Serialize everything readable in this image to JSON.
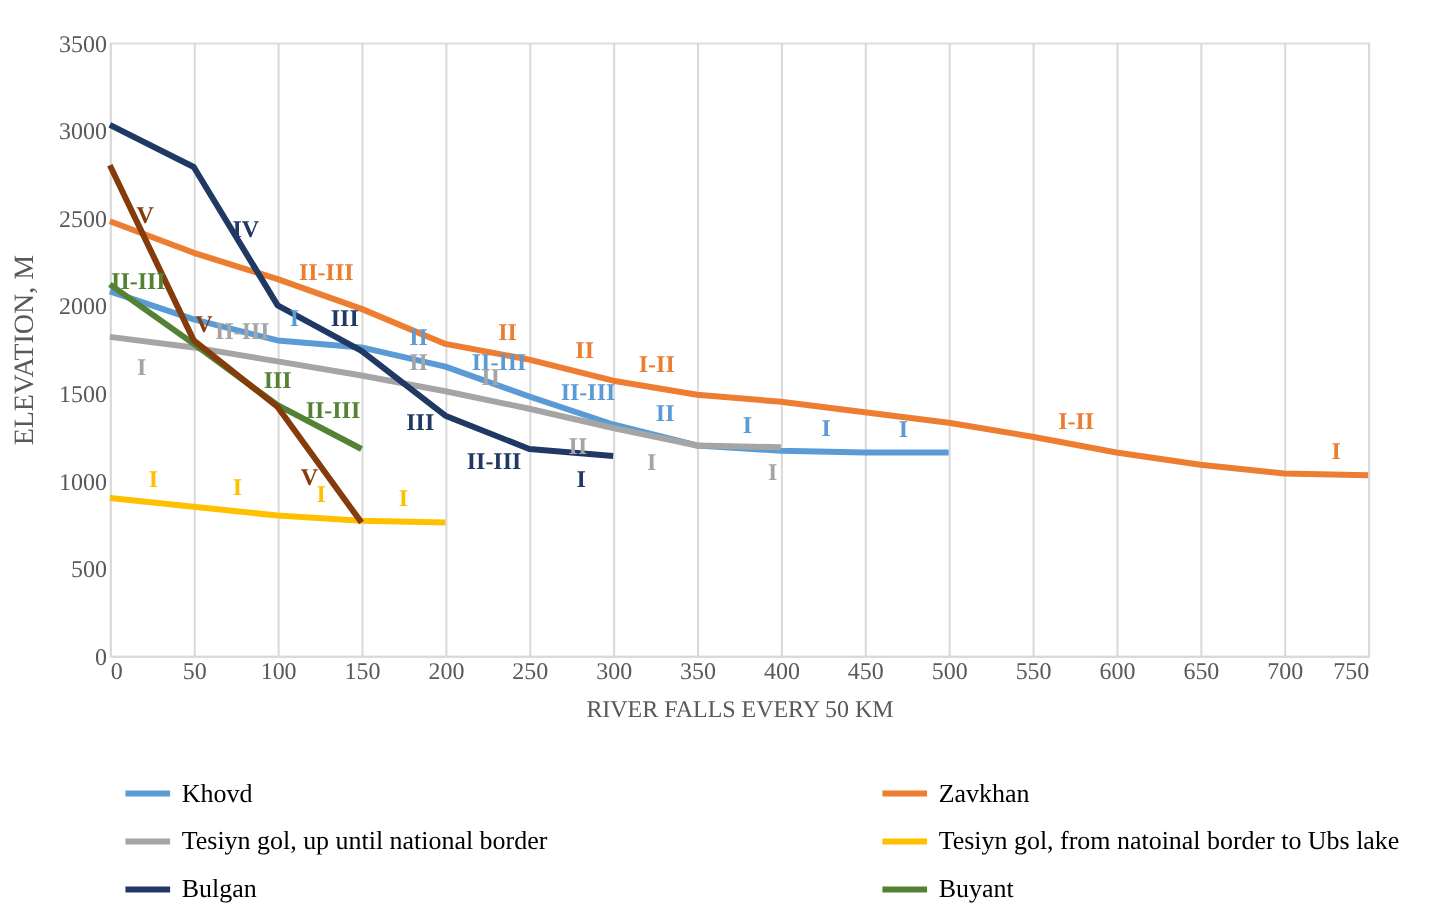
{
  "chart_data": {
    "type": "line",
    "xlabel": "RIVER FALLS EVERY 50 KM",
    "ylabel": "ELEVATION, M",
    "xlim": [
      0,
      750
    ],
    "xticks": [
      0,
      50,
      100,
      150,
      200,
      250,
      300,
      350,
      400,
      450,
      500,
      550,
      600,
      650,
      700,
      750
    ],
    "ylim": [
      0,
      3500
    ],
    "yticks": [
      0,
      500,
      1000,
      1500,
      2000,
      2500,
      3000,
      3500
    ],
    "grid": "x",
    "legend": "bottom",
    "marker": "none",
    "line_style": "solid",
    "series": [
      {
        "name": "Khovd",
        "color": "#5b9bd5",
        "x": [
          0,
          50,
          100,
          150,
          200,
          250,
          300,
          350,
          400,
          450,
          500
        ],
        "values": [
          2080,
          1920,
          1800,
          1760,
          1650,
          1480,
          1320,
          1200,
          1170,
          1160,
          1160
        ]
      },
      {
        "name": "Zavkhan",
        "color": "#ed7d31",
        "x": [
          0,
          50,
          100,
          150,
          200,
          250,
          300,
          350,
          400,
          450,
          500,
          550,
          600,
          650,
          700,
          750
        ],
        "values": [
          2480,
          2300,
          2150,
          1980,
          1780,
          1690,
          1570,
          1490,
          1450,
          1390,
          1330,
          1250,
          1160,
          1090,
          1040,
          1030
        ]
      },
      {
        "name": "Tesiyn gol, up until national border",
        "color": "#a5a5a5",
        "x": [
          0,
          50,
          100,
          150,
          200,
          250,
          300,
          350,
          400
        ],
        "values": [
          1820,
          1760,
          1680,
          1600,
          1510,
          1410,
          1300,
          1200,
          1190
        ]
      },
      {
        "name": "Tesiyn gol, from natoinal border to Ubs lake",
        "color": "#ffc000",
        "x": [
          0,
          50,
          100,
          150,
          200
        ],
        "values": [
          900,
          850,
          800,
          770,
          760
        ]
      },
      {
        "name": "Bulgan",
        "color": "#203864",
        "x": [
          0,
          50,
          100,
          150,
          200,
          250,
          300
        ],
        "values": [
          3030,
          2790,
          2000,
          1740,
          1370,
          1180,
          1140
        ]
      },
      {
        "name": "Buyant",
        "color": "#548235",
        "x": [
          0,
          50,
          100,
          150
        ],
        "values": [
          2120,
          1780,
          1430,
          1180
        ]
      },
      {
        "color": "#843c0c",
        "x": [
          0,
          50,
          100,
          150
        ],
        "values": [
          2800,
          1800,
          1420,
          760
        ]
      }
    ],
    "annotations": [
      {
        "text": "V",
        "x": 21,
        "y": 2380
      },
      {
        "text": "IV",
        "x": 81,
        "y": 2300
      },
      {
        "text": "II-III",
        "x": 129,
        "y": 2051
      },
      {
        "text": "III",
        "x": 140,
        "y": 1792
      },
      {
        "text": "I",
        "x": 110,
        "y": 1792
      },
      {
        "text": "II",
        "x": 184,
        "y": 1685
      },
      {
        "text": "II-III",
        "x": 17,
        "y": 2004
      },
      {
        "text": "I",
        "x": 19,
        "y": 1787
      },
      {
        "text": "II-III",
        "x": 79,
        "y": 1714
      },
      {
        "text": "III",
        "x": 100,
        "y": 1436
      },
      {
        "text": "V",
        "x": 56,
        "y": 1756
      },
      {
        "text": "II",
        "x": 184,
        "y": 1539
      },
      {
        "text": "III",
        "x": 185,
        "y": 1471
      },
      {
        "text": "II-III",
        "x": 133,
        "y": 1265
      },
      {
        "text": "V",
        "x": 119,
        "y": 1159
      },
      {
        "text": "I",
        "x": 26,
        "y": 874
      },
      {
        "text": "I",
        "x": 76,
        "y": 824
      },
      {
        "text": "I",
        "x": 126,
        "y": 784
      },
      {
        "text": "I",
        "x": 175,
        "y": 765
      },
      {
        "text": "II",
        "x": 237,
        "y": 1713
      },
      {
        "text": "II",
        "x": 283,
        "y": 1611
      },
      {
        "text": "I-II",
        "x": 326,
        "y": 1528
      },
      {
        "text": "II-III",
        "x": 232,
        "y": 1541
      },
      {
        "text": "II-III",
        "x": 285,
        "y": 1368
      },
      {
        "text": "II",
        "x": 227,
        "y": 1456
      },
      {
        "text": "II",
        "x": 279,
        "y": 1336
      },
      {
        "text": "II-III",
        "x": 229,
        "y": 1250
      },
      {
        "text": "I",
        "x": 281,
        "y": 1145
      },
      {
        "text": "II",
        "x": 331,
        "y": 1246
      },
      {
        "text": "I",
        "x": 323,
        "y": 1244
      },
      {
        "text": "I",
        "x": 380,
        "y": 1182
      },
      {
        "text": "I",
        "x": 395,
        "y": 1185
      },
      {
        "text": "I",
        "x": 427,
        "y": 1165
      },
      {
        "text": "I",
        "x": 473,
        "y": 1160
      },
      {
        "text": "I-II",
        "x": 576,
        "y": 1203
      },
      {
        "text": "I",
        "x": 731,
        "y": 1034
      }
    ]
  }
}
